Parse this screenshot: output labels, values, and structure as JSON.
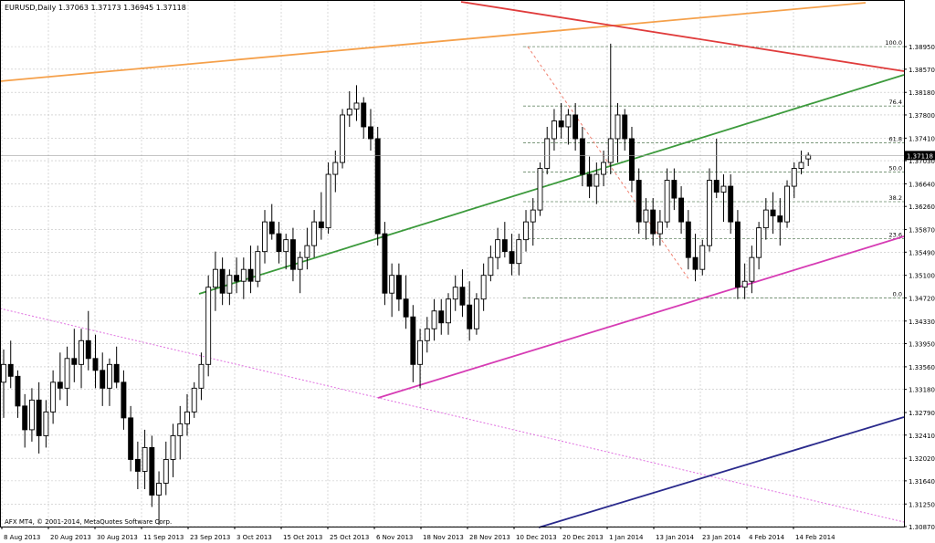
{
  "header": {
    "title": "EURUSD,Daily  1.37063 1.37173 1.36945 1.37118"
  },
  "footer": {
    "copyright": "AFX MT4, © 2001-2014, MetaQuotes Software Corp."
  },
  "colors": {
    "background": "#ffffff",
    "grid": "#c0c0c0",
    "candle": "#000000",
    "orange_line": "#f5a04a",
    "red_line": "#e03c3c",
    "green_line": "#3c9a3c",
    "magenta_line": "#d63cb4",
    "magenta_dotted": "#e070e0",
    "navy_line": "#2a2a8c",
    "fibo_dashed": "#f08070",
    "fibo_levels": "#6a8a6a",
    "current_price_box": "#000000"
  },
  "chart_data": {
    "type": "candlestick",
    "symbol": "EURUSD",
    "timeframe": "Daily",
    "ohlc_header": {
      "open": 1.37063,
      "high": 1.37173,
      "low": 1.36945,
      "close": 1.37118
    },
    "current_price": 1.37118,
    "ylim": [
      1.3087,
      1.3972
    ],
    "y_ticks": [
      "1.38950",
      "1.38570",
      "1.38180",
      "1.37800",
      "1.37410",
      "1.37030",
      "1.36640",
      "1.36260",
      "1.35870",
      "1.35490",
      "1.35100",
      "1.34720",
      "1.34330",
      "1.33950",
      "1.33560",
      "1.33180",
      "1.32790",
      "1.32410",
      "1.32020",
      "1.31640",
      "1.31250",
      "1.30870"
    ],
    "x_ticks": [
      "8 Aug 2013",
      "20 Aug 2013",
      "30 Aug 2013",
      "11 Sep 2013",
      "23 Sep 2013",
      "3 Oct 2013",
      "15 Oct 2013",
      "25 Oct 2013",
      "6 Nov 2013",
      "18 Nov 2013",
      "28 Nov 2013",
      "10 Dec 2013",
      "20 Dec 2013",
      "1 Jan 2014",
      "13 Jan 2014",
      "23 Jan 2014",
      "4 Feb 2014",
      "14 Feb 2014"
    ],
    "candles": [
      [
        1.333,
        1.3385,
        1.327,
        1.336
      ],
      [
        1.336,
        1.34,
        1.332,
        1.334
      ],
      [
        1.334,
        1.335,
        1.327,
        1.329
      ],
      [
        1.329,
        1.331,
        1.322,
        1.325
      ],
      [
        1.325,
        1.332,
        1.323,
        1.33
      ],
      [
        1.33,
        1.333,
        1.321,
        1.324
      ],
      [
        1.324,
        1.33,
        1.322,
        1.328
      ],
      [
        1.328,
        1.335,
        1.326,
        1.333
      ],
      [
        1.333,
        1.338,
        1.33,
        1.332
      ],
      [
        1.332,
        1.339,
        1.329,
        1.337
      ],
      [
        1.337,
        1.342,
        1.333,
        1.336
      ],
      [
        1.336,
        1.342,
        1.332,
        1.34
      ],
      [
        1.34,
        1.345,
        1.335,
        1.337
      ],
      [
        1.337,
        1.341,
        1.332,
        1.335
      ],
      [
        1.335,
        1.338,
        1.329,
        1.332
      ],
      [
        1.332,
        1.337,
        1.329,
        1.336
      ],
      [
        1.336,
        1.339,
        1.332,
        1.333
      ],
      [
        1.333,
        1.335,
        1.325,
        1.327
      ],
      [
        1.327,
        1.329,
        1.318,
        1.32
      ],
      [
        1.32,
        1.323,
        1.315,
        1.318
      ],
      [
        1.318,
        1.325,
        1.315,
        1.322
      ],
      [
        1.322,
        1.324,
        1.312,
        1.314
      ],
      [
        1.314,
        1.318,
        1.309,
        1.316
      ],
      [
        1.316,
        1.323,
        1.314,
        1.32
      ],
      [
        1.32,
        1.326,
        1.317,
        1.324
      ],
      [
        1.324,
        1.329,
        1.32,
        1.326
      ],
      [
        1.326,
        1.331,
        1.324,
        1.328
      ],
      [
        1.328,
        1.333,
        1.327,
        1.332
      ],
      [
        1.332,
        1.338,
        1.33,
        1.336
      ],
      [
        1.336,
        1.351,
        1.334,
        1.349
      ],
      [
        1.349,
        1.355,
        1.345,
        1.352
      ],
      [
        1.352,
        1.354,
        1.346,
        1.348
      ],
      [
        1.348,
        1.352,
        1.346,
        1.351
      ],
      [
        1.351,
        1.354,
        1.348,
        1.35
      ],
      [
        1.35,
        1.354,
        1.347,
        1.352
      ],
      [
        1.352,
        1.356,
        1.348,
        1.35
      ],
      [
        1.35,
        1.356,
        1.349,
        1.355
      ],
      [
        1.355,
        1.362,
        1.353,
        1.36
      ],
      [
        1.36,
        1.363,
        1.357,
        1.358
      ],
      [
        1.358,
        1.36,
        1.353,
        1.355
      ],
      [
        1.355,
        1.358,
        1.352,
        1.357
      ],
      [
        1.357,
        1.359,
        1.35,
        1.352
      ],
      [
        1.352,
        1.355,
        1.348,
        1.354
      ],
      [
        1.354,
        1.359,
        1.352,
        1.356
      ],
      [
        1.356,
        1.362,
        1.354,
        1.36
      ],
      [
        1.36,
        1.365,
        1.357,
        1.359
      ],
      [
        1.359,
        1.37,
        1.358,
        1.368
      ],
      [
        1.368,
        1.372,
        1.365,
        1.37
      ],
      [
        1.37,
        1.379,
        1.369,
        1.378
      ],
      [
        1.378,
        1.382,
        1.376,
        1.379
      ],
      [
        1.379,
        1.383,
        1.377,
        1.38
      ],
      [
        1.38,
        1.381,
        1.374,
        1.376
      ],
      [
        1.376,
        1.379,
        1.372,
        1.374
      ],
      [
        1.374,
        1.376,
        1.356,
        1.358
      ],
      [
        1.358,
        1.36,
        1.346,
        1.348
      ],
      [
        1.348,
        1.353,
        1.344,
        1.351
      ],
      [
        1.351,
        1.353,
        1.345,
        1.347
      ],
      [
        1.347,
        1.351,
        1.342,
        1.344
      ],
      [
        1.344,
        1.346,
        1.333,
        1.336
      ],
      [
        1.336,
        1.342,
        1.332,
        1.34
      ],
      [
        1.34,
        1.344,
        1.338,
        1.342
      ],
      [
        1.342,
        1.347,
        1.34,
        1.345
      ],
      [
        1.345,
        1.347,
        1.341,
        1.343
      ],
      [
        1.343,
        1.348,
        1.341,
        1.347
      ],
      [
        1.347,
        1.351,
        1.345,
        1.349
      ],
      [
        1.349,
        1.352,
        1.344,
        1.346
      ],
      [
        1.346,
        1.35,
        1.34,
        1.342
      ],
      [
        1.342,
        1.348,
        1.341,
        1.347
      ],
      [
        1.347,
        1.353,
        1.345,
        1.351
      ],
      [
        1.351,
        1.356,
        1.35,
        1.354
      ],
      [
        1.354,
        1.359,
        1.352,
        1.357
      ],
      [
        1.357,
        1.36,
        1.354,
        1.355
      ],
      [
        1.355,
        1.358,
        1.351,
        1.353
      ],
      [
        1.353,
        1.358,
        1.351,
        1.357
      ],
      [
        1.357,
        1.362,
        1.355,
        1.36
      ],
      [
        1.36,
        1.364,
        1.356,
        1.362
      ],
      [
        1.362,
        1.37,
        1.361,
        1.369
      ],
      [
        1.369,
        1.376,
        1.368,
        1.374
      ],
      [
        1.374,
        1.379,
        1.372,
        1.377
      ],
      [
        1.377,
        1.38,
        1.374,
        1.376
      ],
      [
        1.376,
        1.379,
        1.373,
        1.378
      ],
      [
        1.378,
        1.38,
        1.372,
        1.374
      ],
      [
        1.374,
        1.376,
        1.366,
        1.368
      ],
      [
        1.368,
        1.371,
        1.364,
        1.366
      ],
      [
        1.366,
        1.37,
        1.363,
        1.368
      ],
      [
        1.368,
        1.372,
        1.366,
        1.37
      ],
      [
        1.37,
        1.39,
        1.368,
        1.374
      ],
      [
        1.374,
        1.38,
        1.37,
        1.378
      ],
      [
        1.378,
        1.379,
        1.372,
        1.374
      ],
      [
        1.374,
        1.376,
        1.365,
        1.367
      ],
      [
        1.367,
        1.369,
        1.358,
        1.36
      ],
      [
        1.36,
        1.364,
        1.357,
        1.362
      ],
      [
        1.362,
        1.364,
        1.356,
        1.358
      ],
      [
        1.358,
        1.362,
        1.356,
        1.36
      ],
      [
        1.36,
        1.369,
        1.359,
        1.367
      ],
      [
        1.367,
        1.369,
        1.362,
        1.364
      ],
      [
        1.364,
        1.366,
        1.358,
        1.36
      ],
      [
        1.36,
        1.362,
        1.352,
        1.354
      ],
      [
        1.354,
        1.358,
        1.35,
        1.352
      ],
      [
        1.352,
        1.357,
        1.351,
        1.356
      ],
      [
        1.356,
        1.369,
        1.355,
        1.367
      ],
      [
        1.367,
        1.374,
        1.364,
        1.365
      ],
      [
        1.365,
        1.368,
        1.36,
        1.366
      ],
      [
        1.366,
        1.368,
        1.358,
        1.36
      ],
      [
        1.36,
        1.362,
        1.347,
        1.349
      ],
      [
        1.349,
        1.353,
        1.347,
        1.35
      ],
      [
        1.35,
        1.356,
        1.348,
        1.354
      ],
      [
        1.354,
        1.36,
        1.352,
        1.359
      ],
      [
        1.359,
        1.364,
        1.357,
        1.362
      ],
      [
        1.362,
        1.365,
        1.358,
        1.361
      ],
      [
        1.361,
        1.364,
        1.356,
        1.36
      ],
      [
        1.36,
        1.367,
        1.359,
        1.366
      ],
      [
        1.366,
        1.37,
        1.364,
        1.369
      ],
      [
        1.369,
        1.372,
        1.368,
        1.37
      ],
      [
        1.3706,
        1.3717,
        1.3694,
        1.3712
      ]
    ],
    "fibonacci": {
      "high": 1.3895,
      "low": 1.3472,
      "levels": [
        {
          "label": "100.0",
          "value": 1.3895
        },
        {
          "label": "76.4",
          "value": 1.3795
        },
        {
          "label": "61.8",
          "value": 1.3733
        },
        {
          "label": "50.0",
          "value": 1.3684
        },
        {
          "label": "38.2",
          "value": 1.3634
        },
        {
          "label": "23.6",
          "value": 1.3572
        },
        {
          "label": "0.0",
          "value": 1.3472
        }
      ]
    },
    "grid": true,
    "chart_mode": "candlestick"
  }
}
